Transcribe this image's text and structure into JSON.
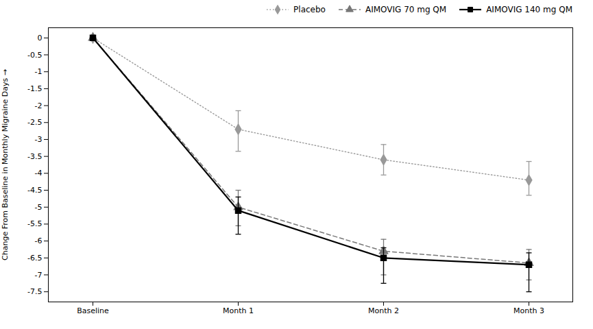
{
  "chart_data": {
    "type": "line",
    "categories": [
      "Baseline",
      "Month 1",
      "Month 2",
      "Month 3"
    ],
    "series": [
      {
        "name": "Placebo",
        "color": "#999999",
        "marker": "diamond",
        "line_style": "dotted",
        "values": [
          0,
          -2.7,
          -3.6,
          -4.2
        ],
        "yerr_low": [
          0.0,
          0.65,
          0.45,
          0.45
        ],
        "yerr_high": [
          0.0,
          0.55,
          0.45,
          0.55
        ]
      },
      {
        "name": "AIMOVIG 70 mg QM",
        "color": "#777777",
        "marker": "triangle",
        "line_style": "dashed",
        "values": [
          0,
          -5.0,
          -6.3,
          -6.65
        ],
        "yerr_low": [
          0.0,
          0.55,
          0.7,
          0.5
        ],
        "yerr_high": [
          0.0,
          0.5,
          0.35,
          0.4
        ]
      },
      {
        "name": "AIMOVIG 140 mg QM",
        "color": "#000000",
        "marker": "square",
        "line_style": "solid",
        "values": [
          0,
          -5.1,
          -6.5,
          -6.7
        ],
        "yerr_low": [
          0.0,
          0.7,
          0.75,
          0.8
        ],
        "yerr_high": [
          0.0,
          0.4,
          0.3,
          0.35
        ]
      }
    ],
    "ylabel": "Change From Baseline in Monthly Migraine Days",
    "ylim": [
      -7.8,
      0.3
    ],
    "yticks": [
      0,
      -0.5,
      -1,
      -1.5,
      -2,
      -2.5,
      -3,
      -3.5,
      -4,
      -4.5,
      -5,
      -5.5,
      -6,
      -6.5,
      -7,
      -7.5
    ],
    "grid": false,
    "legend": "upper right"
  }
}
